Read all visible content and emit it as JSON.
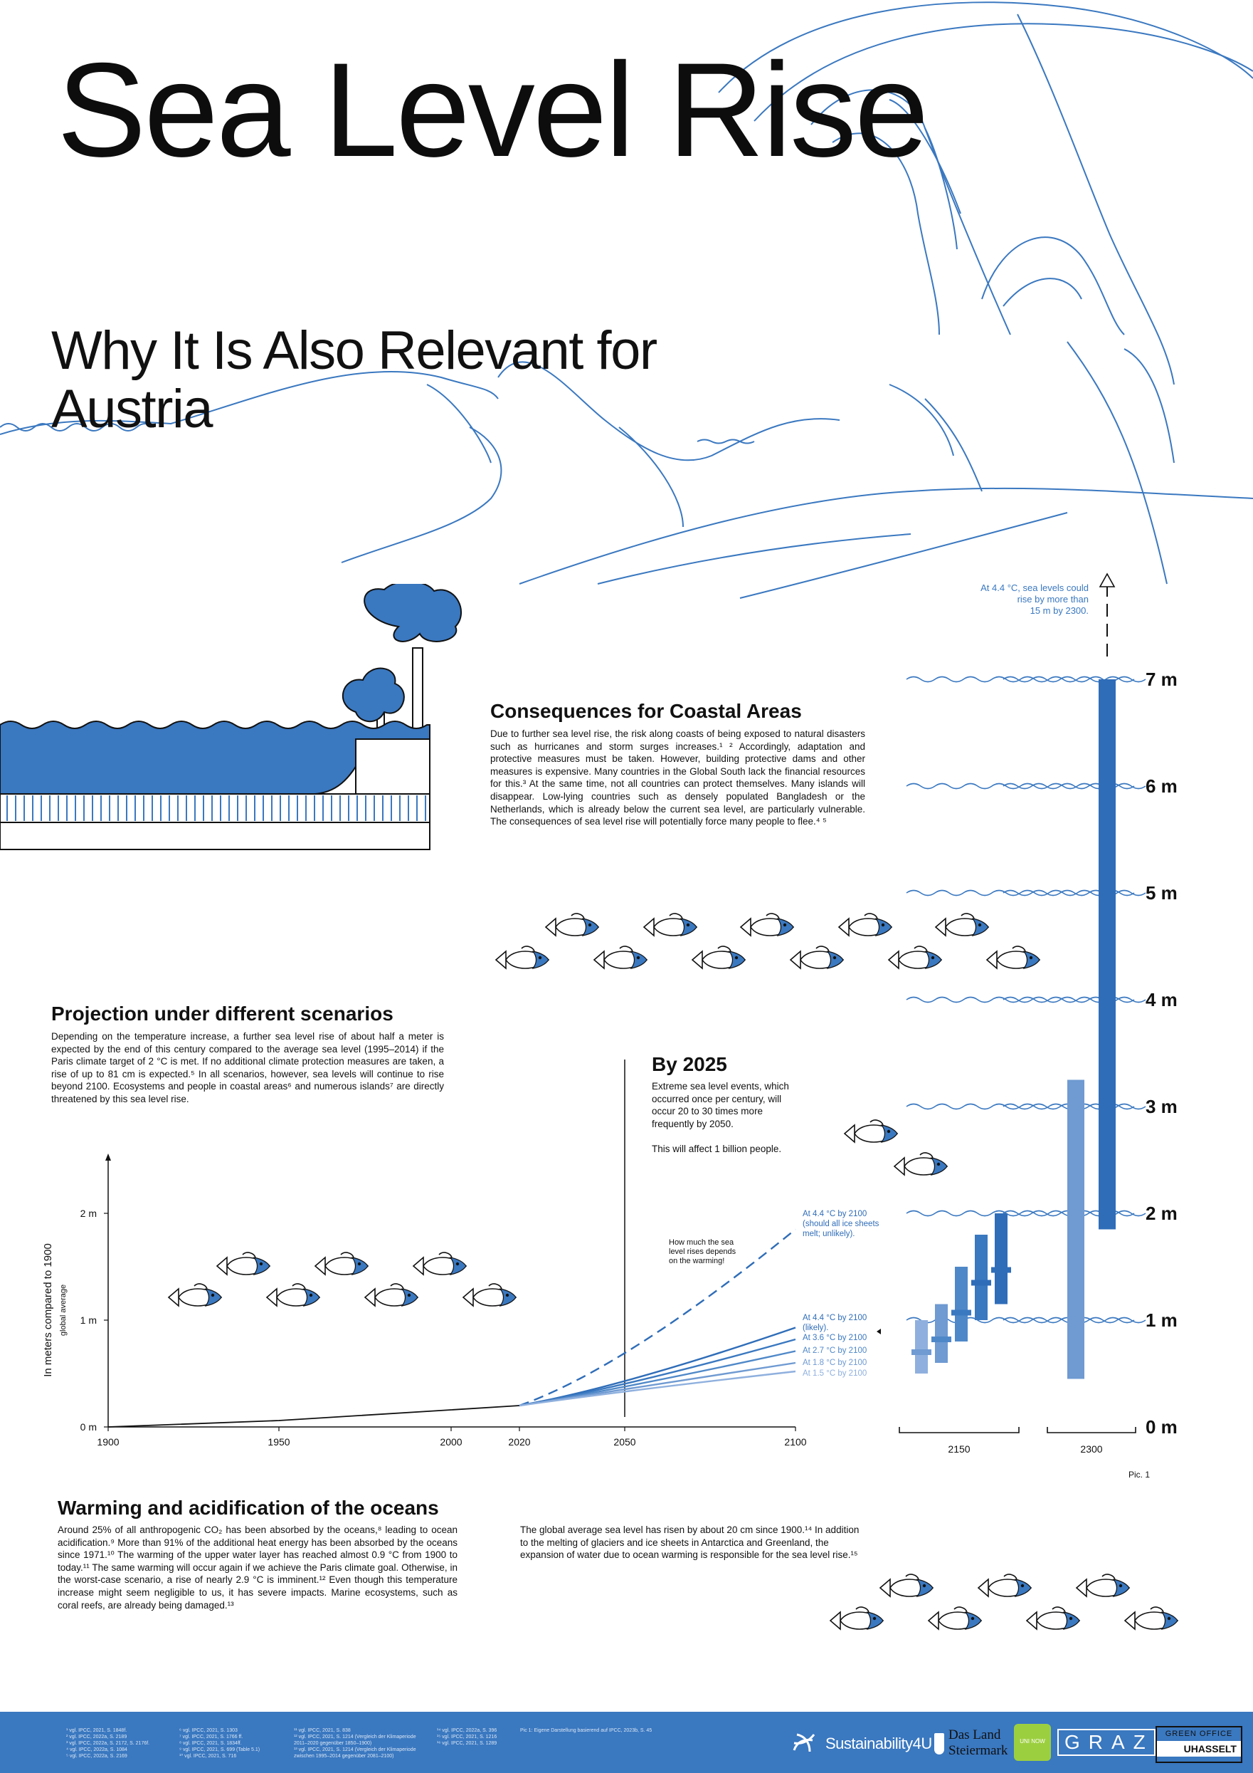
{
  "title": "Sea Level Rise",
  "subtitle": "Why It Is Also Relevant for Austria",
  "colors": {
    "accent": "#3a78c0",
    "dark_blue": "#2f6db8",
    "light_blue": "#6f9ad2",
    "text": "#111111"
  },
  "consequences": {
    "heading": "Consequences for Coastal Areas",
    "body": "Due to further sea level rise, the risk along coasts of being exposed to natural disasters such as hurricanes and storm surges increases.¹ ² Accordingly, adaptation and protective measures must be taken. However, building protective dams and other measures is expensive. Many countries in the Global South lack the financial resources for this.³ At the same time, not all countries can protect themselves. Many islands will disappear. Low-lying countries such as densely populated Bangladesh or the Netherlands, which is already below the current sea level, are particularly vulnerable. The consequences of sea level rise will potentially force many people to flee.⁴ ⁵"
  },
  "projection": {
    "heading": "Projection under different scenarios",
    "body": "Depending on the temperature increase, a further sea level rise of about half a meter is expected by the end of this century compared to the average sea level (1995–2014) if the Paris climate target of 2 °C is met. If no additional climate protection measures are taken, a rise of up to 81 cm is expected.⁵ In all scenarios, however, sea levels will continue to rise beyond 2100. Ecosystems and people in coastal areas⁶ and numerous islands⁷ are directly threatened by this sea level rise."
  },
  "by2025": {
    "heading": "By 2025",
    "body": "Extreme sea level events, which occurred once per century, will occur 20 to 30 times more frequently by 2050.",
    "body2": "This will affect 1 billion people."
  },
  "warming": {
    "heading": "Warming and acidification of the oceans",
    "body": "Around 25% of all anthropogenic CO₂ has been absorbed by the oceans,⁸ leading to ocean acidification.⁹ More than 91% of the additional heat energy has been absorbed by the oceans since 1971.¹⁰ The warming of the upper water layer has reached almost 0.9 °C from 1900 to today.¹¹ The same warming will occur again if we achieve the Paris climate goal. Otherwise, in the worst-case scenario, a rise of nearly 2.9 °C is imminent.¹² Even though this temperature increase might seem negligible to us, it has severe impacts. Marine ecosystems, such as coral reefs, are already being damaged.¹³",
    "body2": "The global average sea level has risen by about 20 cm since 1900.¹⁴ In addition to the melting of glaciers and ice sheets in Antarctica and Greenland, the expansion of water due to ocean warming is responsible for the sea level rise.¹⁵"
  },
  "chart_data": {
    "type": "line",
    "ylabel": "In meters compared to 1900",
    "ylabel2": "global average",
    "x_ticks": [
      "1900",
      "1950",
      "2000",
      "2020",
      "2050",
      "2100"
    ],
    "y_ticks": [
      "0 m",
      "1 m",
      "2 m"
    ],
    "ylim": [
      0,
      2.5
    ],
    "xlim": [
      1900,
      2100
    ],
    "historical": {
      "x": [
        1900,
        1950,
        2000,
        2020
      ],
      "y": [
        0,
        0.06,
        0.16,
        0.2
      ]
    },
    "series": [
      {
        "name": "At 4.4 °C by 2100 (should all ice sheets melt; unlikely).",
        "x": [
          2020,
          2050,
          2100
        ],
        "y": [
          0.2,
          0.55,
          1.85
        ],
        "dashed": true,
        "color": "#2f6db8"
      },
      {
        "name": "At 4.4 °C by 2100 (likely).",
        "x": [
          2020,
          2050,
          2100
        ],
        "y": [
          0.2,
          0.38,
          0.93
        ],
        "color": "#2f6db8"
      },
      {
        "name": "At 3.6 °C by 2100",
        "x": [
          2020,
          2050,
          2100
        ],
        "y": [
          0.2,
          0.37,
          0.82
        ],
        "color": "#3a78c0"
      },
      {
        "name": "At 2.7 °C by 2100",
        "x": [
          2020,
          2050,
          2100
        ],
        "y": [
          0.2,
          0.36,
          0.71
        ],
        "color": "#4f88c8"
      },
      {
        "name": "At 1.8 °C by 2100",
        "x": [
          2020,
          2050,
          2100
        ],
        "y": [
          0.2,
          0.35,
          0.6
        ],
        "color": "#6f9ad2"
      },
      {
        "name": "At 1.5 °C by 2100",
        "x": [
          2020,
          2050,
          2100
        ],
        "y": [
          0.2,
          0.34,
          0.52
        ],
        "color": "#8fb0de"
      }
    ],
    "annotation": "How much the sea level rises depends on the warming!",
    "by2025_marker_year": 2050,
    "ranges_2150": [
      {
        "low": 0.5,
        "high": 1.0,
        "median": 0.7
      },
      {
        "low": 0.6,
        "high": 1.15,
        "median": 0.82
      },
      {
        "low": 0.8,
        "high": 1.5,
        "median": 1.07
      },
      {
        "low": 1.0,
        "high": 1.8,
        "median": 1.35
      },
      {
        "low": 1.15,
        "high": 2.0,
        "median": 1.47
      }
    ],
    "ranges_2300": [
      {
        "low": 0.45,
        "high": 3.25
      },
      {
        "low": 1.85,
        "high": 7.0
      }
    ],
    "right_axis_labels": [
      "0 m",
      "1 m",
      "2 m",
      "3 m",
      "4 m",
      "5 m",
      "6 m",
      "7 m"
    ],
    "right_x_labels": [
      "2150",
      "2300"
    ],
    "note_2300": "At 4.4 °C, sea levels could rise by more than 15 m by 2300.",
    "pic_label": "Pic. 1"
  },
  "footnotes": {
    "col1": [
      "¹ vgl. IPCC, 2021, S. 1848f.",
      "² vgl. IPCC, 2022a, S. 2189",
      "³ vgl. IPCC, 2022a, S. 2172, S. 2176f.",
      "⁴ vgl. IPCC, 2022a, S. 1084",
      "⁵ vgl. IPCC, 2022a, S. 2169"
    ],
    "col2": [
      "⁶ vgl. IPCC, 2021, S. 1303",
      "⁷ vgl. IPCC, 2021, S. 1766 ff.",
      "⁸ vgl. IPCC, 2021, S. 1834ff.",
      "⁹ vgl. IPCC, 2021, S. 699 (Table 5.1)",
      "¹⁰ vgl. IPCC, 2021, S. 716"
    ],
    "col3": [
      "¹¹ vgl. IPCC, 2021, S. 838",
      "¹² vgl. IPCC, 2021, S. 1214 (Vergleich der Klimaperiode",
      "2011–2020 gegenüber 1850–1900)",
      "¹³ vgl. IPCC, 2021, S. 1214 (Vergleich der Klimaperiode",
      "zwischen 1995–2014 gegenüber 2081–2100)"
    ],
    "col4": [
      "¹⁴ vgl. IPCC, 2022a, S. 396",
      "¹⁵ vgl. IPCC, 2021, S. 1216",
      "¹⁶ vgl. IPCC, 2021, S. 1289"
    ],
    "col5": [
      "Pic 1: Eigene Darstellung basierend auf IPCC, 2023b, S. 45"
    ]
  },
  "logos": {
    "sustainability": "Sustainability4U",
    "steiermark_1": "Das Land",
    "steiermark_2": "Steiermark",
    "graz": "GRAZ",
    "green_office": "GREEN OFFICE",
    "uhasselt": "UHASSELT",
    "uni_label": "UNI NOW"
  }
}
